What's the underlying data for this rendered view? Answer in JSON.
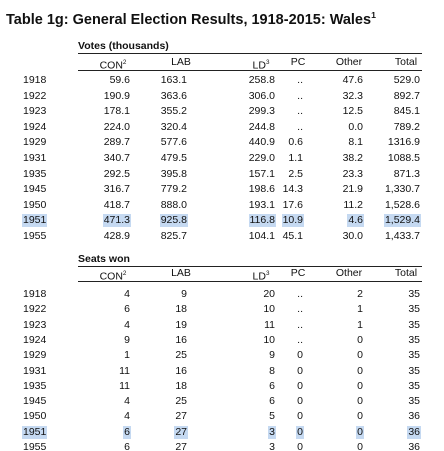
{
  "title": "Table 1g: General Election Results, 1918-2015: Wales",
  "title_note": "1",
  "sections": [
    {
      "heading": "Votes (thousands)",
      "columns": [
        {
          "label": "CON",
          "note": "2"
        },
        {
          "label": "LAB"
        },
        {
          "label": "LD",
          "note": "3"
        },
        {
          "label": "PC"
        },
        {
          "label": "Other"
        },
        {
          "label": "Total"
        }
      ],
      "rows": [
        [
          "1918",
          "59.6",
          "163.1",
          "258.8",
          "..",
          "47.6",
          "529.0"
        ],
        [
          "1922",
          "190.9",
          "363.6",
          "306.0",
          "..",
          "32.3",
          "892.7"
        ],
        [
          "1923",
          "178.1",
          "355.2",
          "299.3",
          "..",
          "12.5",
          "845.1"
        ],
        [
          "1924",
          "224.0",
          "320.4",
          "244.8",
          "..",
          "0.0",
          "789.2"
        ],
        [
          "1929",
          "289.7",
          "577.6",
          "440.9",
          "0.6",
          "8.1",
          "1316.9"
        ],
        [
          "1931",
          "340.7",
          "479.5",
          "229.0",
          "1.1",
          "38.2",
          "1088.5"
        ],
        [
          "1935",
          "292.5",
          "395.8",
          "157.1",
          "2.5",
          "23.3",
          "871.3"
        ],
        [
          "1945",
          "316.7",
          "779.2",
          "198.6",
          "14.3",
          "21.9",
          "1,330.7"
        ],
        [
          "1950",
          "418.7",
          "888.0",
          "193.1",
          "17.6",
          "11.2",
          "1,528.6"
        ],
        [
          "1951",
          "471.3",
          "925.8",
          "116.8",
          "10.9",
          "4.6",
          "1,529.4"
        ],
        [
          "1955",
          "428.9",
          "825.7",
          "104.1",
          "45.1",
          "30.0",
          "1,433.7"
        ]
      ]
    },
    {
      "heading": "Seats won",
      "columns": [
        {
          "label": "CON",
          "note": "2"
        },
        {
          "label": "LAB"
        },
        {
          "label": "LD",
          "note": "3"
        },
        {
          "label": "PC"
        },
        {
          "label": "Other"
        },
        {
          "label": "Total"
        }
      ],
      "rows": [
        [
          "1918",
          "4",
          "9",
          "20",
          "..",
          "2",
          "35"
        ],
        [
          "1922",
          "6",
          "18",
          "10",
          "..",
          "1",
          "35"
        ],
        [
          "1923",
          "4",
          "19",
          "11",
          "..",
          "1",
          "35"
        ],
        [
          "1924",
          "9",
          "16",
          "10",
          "..",
          "0",
          "35"
        ],
        [
          "1929",
          "1",
          "25",
          "9",
          "0",
          "0",
          "35"
        ],
        [
          "1931",
          "11",
          "16",
          "8",
          "0",
          "0",
          "35"
        ],
        [
          "1935",
          "11",
          "18",
          "6",
          "0",
          "0",
          "35"
        ],
        [
          "1945",
          "4",
          "25",
          "6",
          "0",
          "0",
          "35"
        ],
        [
          "1950",
          "4",
          "27",
          "5",
          "0",
          "0",
          "36"
        ],
        [
          "1951",
          "6",
          "27",
          "3",
          "0",
          "0",
          "36"
        ],
        [
          "1955",
          "6",
          "27",
          "3",
          "0",
          "0",
          "36"
        ]
      ]
    }
  ]
}
